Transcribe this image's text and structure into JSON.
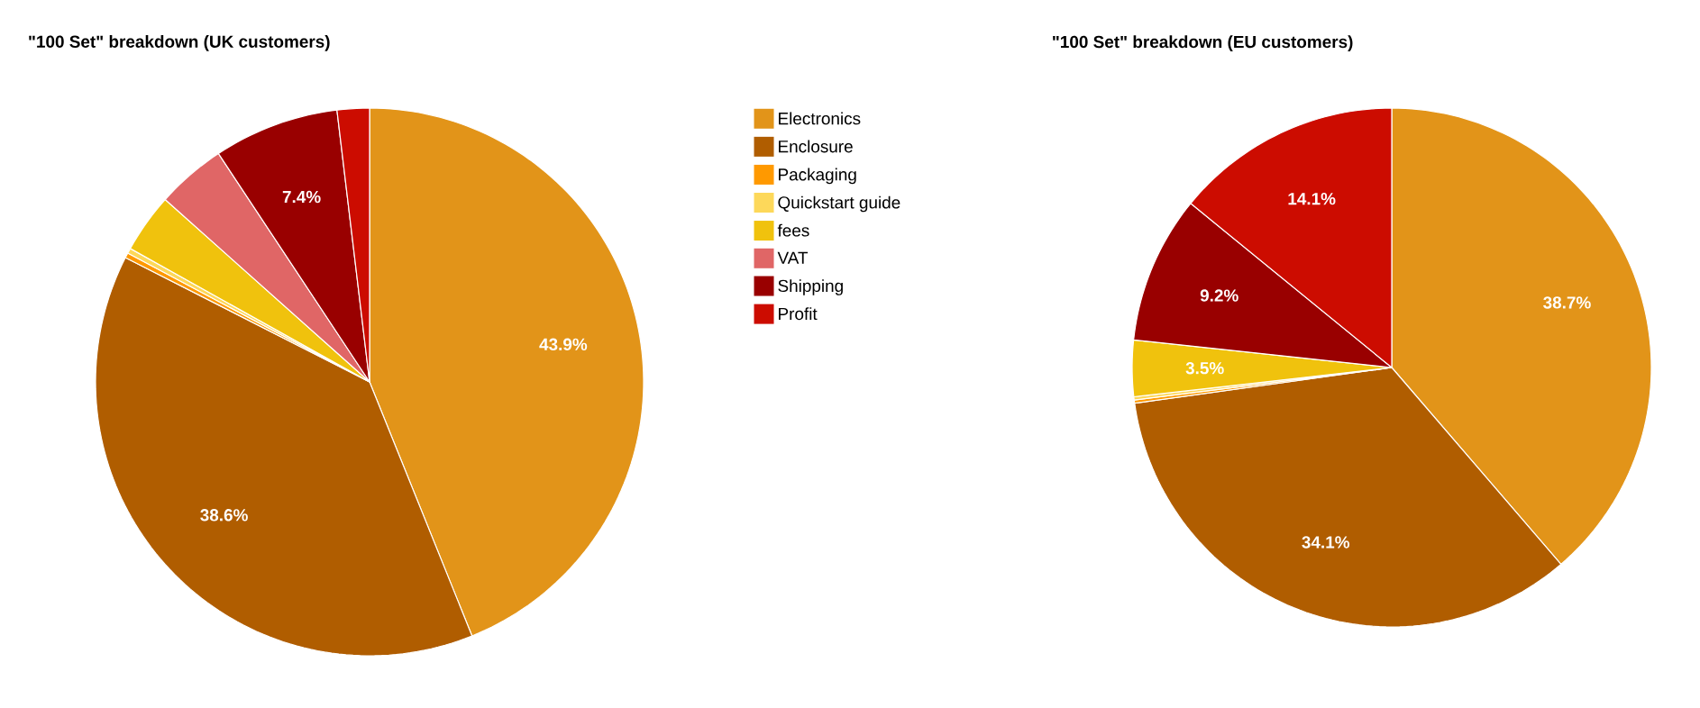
{
  "chart_data": [
    {
      "type": "pie",
      "title": "\"100 Set\" breakdown (UK customers)",
      "categories": [
        "Electronics",
        "Enclosure",
        "Packaging",
        "Quickstart guide",
        "fees",
        "VAT",
        "Shipping",
        "Profit"
      ],
      "values": [
        43.9,
        38.6,
        0.3,
        0.3,
        3.5,
        4.1,
        7.4,
        1.9
      ],
      "colors": [
        "#e29419",
        "#b05d00",
        "#ff9900",
        "#fdd85a",
        "#f0c20d",
        "#e06666",
        "#990000",
        "#cc0c00"
      ],
      "value_labels": [
        "43.9%",
        "38.6%",
        null,
        null,
        null,
        null,
        "7.4%",
        null
      ],
      "legend": "right"
    },
    {
      "type": "pie",
      "title": "\"100 Set\" breakdown (EU customers)",
      "categories": [
        null,
        null,
        null,
        null,
        null,
        null,
        null,
        null
      ],
      "values": [
        38.7,
        34.1,
        0.2,
        0.2,
        3.5,
        0,
        9.2,
        14.1
      ],
      "colors": [
        "#e29419",
        "#b05d00",
        "#ff9900",
        "#fdd85a",
        "#f0c20d",
        "#e06666",
        "#990000",
        "#cc0c00"
      ],
      "value_labels": [
        "38.7%",
        "34.1%",
        null,
        null,
        "3.5%",
        null,
        "9.2%",
        "14.1%"
      ]
    }
  ]
}
